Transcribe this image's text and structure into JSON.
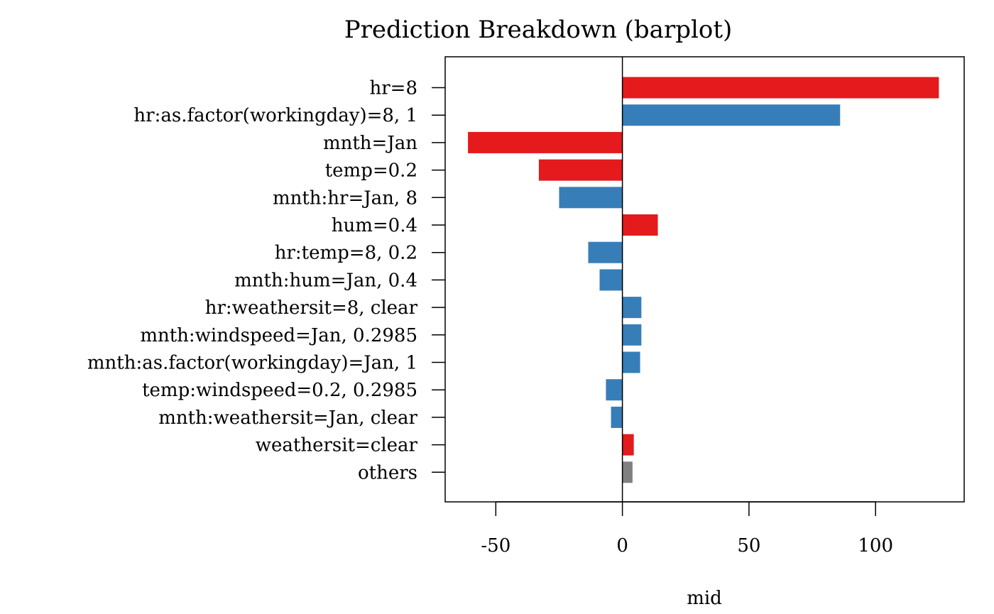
{
  "chart_data": {
    "type": "bar",
    "orientation": "horizontal",
    "title": "Prediction Breakdown (barplot)",
    "xlabel": "mid",
    "ylabel": "",
    "xlim": [
      -70,
      135
    ],
    "x_ticks": [
      -50,
      0,
      50,
      100
    ],
    "x_tick_labels": [
      "-50",
      "0",
      "50",
      "100"
    ],
    "grid": false,
    "legend": "none",
    "categories": [
      "hr=8",
      "hr:as.factor(workingday)=8, 1",
      "mnth=Jan",
      "temp=0.2",
      "mnth:hr=Jan, 8",
      "hum=0.4",
      "hr:temp=8, 0.2",
      "mnth:hum=Jan, 0.4",
      "hr:weathersit=8, clear",
      "mnth:windspeed=Jan, 0.2985",
      "mnth:as.factor(workingday)=Jan, 1",
      "temp:windspeed=0.2, 0.2985",
      "mnth:weathersit=Jan, clear",
      "weathersit=clear",
      "others"
    ],
    "values": [
      125,
      86,
      -61,
      -33,
      -25,
      14,
      -13.5,
      -9,
      7.5,
      7.5,
      7,
      -6.5,
      -4.5,
      4.5,
      4
    ],
    "colors": [
      "#E41A1C",
      "#377EB8",
      "#E41A1C",
      "#E41A1C",
      "#377EB8",
      "#E41A1C",
      "#377EB8",
      "#377EB8",
      "#377EB8",
      "#377EB8",
      "#377EB8",
      "#377EB8",
      "#377EB8",
      "#E41A1C",
      "#808080"
    ]
  }
}
